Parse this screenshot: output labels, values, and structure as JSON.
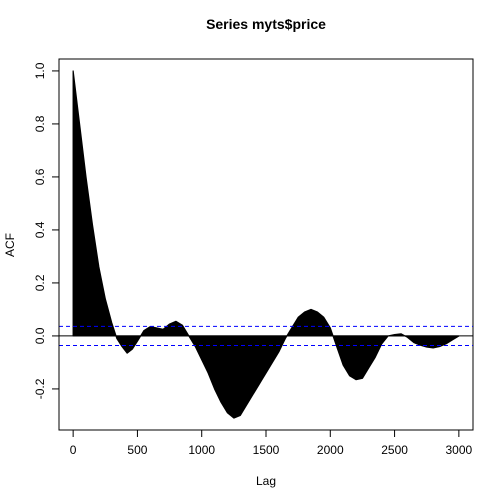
{
  "chart_data": {
    "type": "area",
    "title": "Series  myts$price",
    "xlabel": "Lag",
    "ylabel": "ACF",
    "xlim": [
      -110,
      3110
    ],
    "ylim": [
      -0.355,
      1.045
    ],
    "x_ticks": [
      0,
      500,
      1000,
      1500,
      2000,
      2500,
      3000
    ],
    "x_tick_labels": [
      "0",
      "500",
      "1000",
      "1500",
      "2000",
      "2500",
      "3000"
    ],
    "y_ticks": [
      -0.2,
      0.0,
      0.2,
      0.4,
      0.6,
      0.8,
      1.0
    ],
    "y_tick_labels": [
      "-0.2",
      "0.0",
      "0.2",
      "0.4",
      "0.6",
      "0.8",
      "1.0"
    ],
    "ci_upper": 0.036,
    "ci_lower": -0.036,
    "grid": false,
    "series": [
      {
        "x": [
          0,
          50,
          100,
          150,
          200,
          250,
          300,
          340,
          380,
          420,
          460,
          500,
          550,
          600,
          650,
          700,
          750,
          800,
          850,
          900,
          950,
          1000,
          1050,
          1100,
          1150,
          1200,
          1250,
          1300,
          1350,
          1400,
          1450,
          1500,
          1550,
          1600,
          1650,
          1700,
          1750,
          1800,
          1850,
          1900,
          1950,
          2000,
          2050,
          2100,
          2150,
          2200,
          2250,
          2300,
          2350,
          2400,
          2450,
          2500,
          2550,
          2600,
          2650,
          2700,
          2750,
          2800,
          2850,
          2900,
          2950,
          3000
        ],
        "values": [
          1.0,
          0.8,
          0.6,
          0.42,
          0.26,
          0.14,
          0.05,
          -0.01,
          -0.04,
          -0.065,
          -0.05,
          -0.02,
          0.02,
          0.035,
          0.03,
          0.025,
          0.045,
          0.055,
          0.04,
          0.0,
          -0.04,
          -0.09,
          -0.14,
          -0.2,
          -0.25,
          -0.29,
          -0.31,
          -0.3,
          -0.26,
          -0.22,
          -0.18,
          -0.14,
          -0.1,
          -0.06,
          -0.01,
          0.03,
          0.07,
          0.09,
          0.1,
          0.09,
          0.07,
          0.03,
          -0.04,
          -0.11,
          -0.15,
          -0.165,
          -0.16,
          -0.12,
          -0.08,
          -0.03,
          0.0,
          0.005,
          0.008,
          -0.005,
          -0.025,
          -0.035,
          -0.042,
          -0.045,
          -0.04,
          -0.03,
          -0.015,
          0.0
        ]
      }
    ]
  }
}
